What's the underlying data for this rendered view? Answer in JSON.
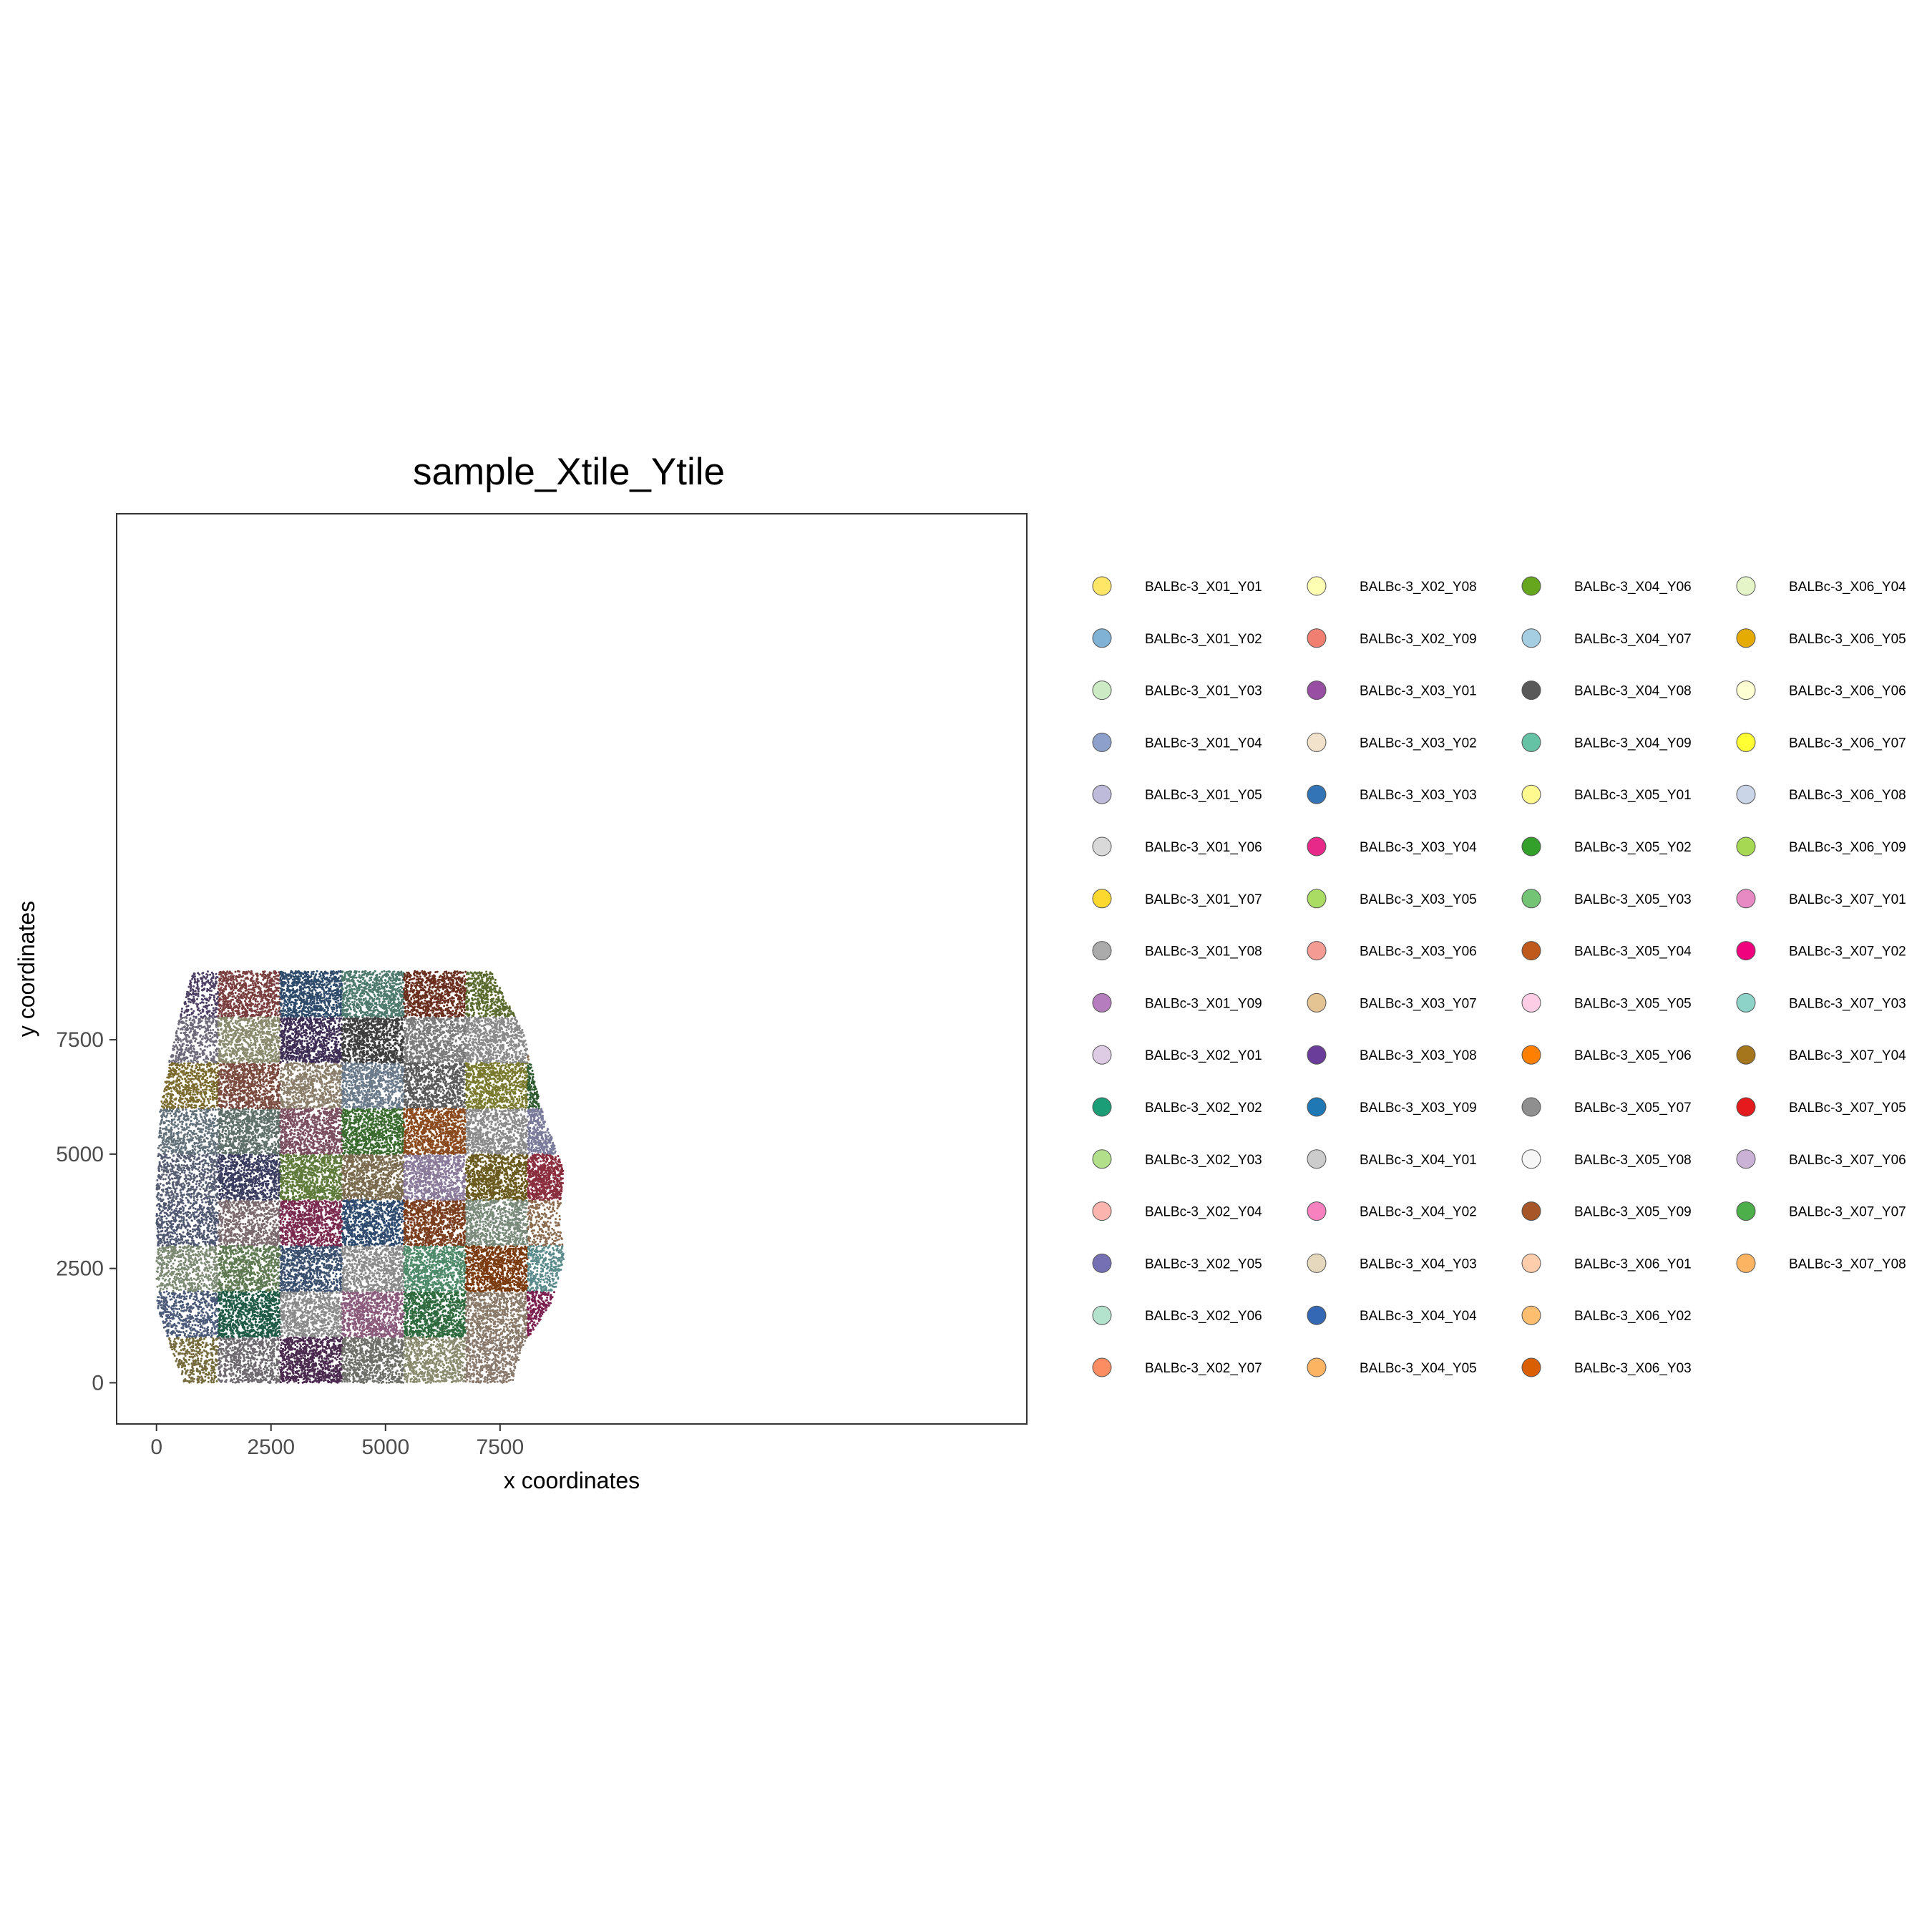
{
  "chart_data": {
    "type": "scatter",
    "title": "sample_Xtile_Ytile",
    "xlabel": "x coordinates",
    "ylabel": "y coordinates",
    "xlim": [
      -870,
      19000
    ],
    "ylim": [
      -900,
      19000
    ],
    "x_ticks": [
      0,
      2500,
      5000,
      7500
    ],
    "y_ticks": [
      0,
      2500,
      5000,
      7500
    ],
    "x_tick_labels": [
      "0",
      "2500",
      "5000",
      "7500"
    ],
    "y_tick_labels": [
      "0",
      "2500",
      "5000",
      "7500"
    ],
    "grid": false,
    "legend_placement": "right",
    "tile_size": [
      1350,
      1000
    ],
    "legend": [
      {
        "name": "BALBc-3_X01_Y01",
        "color": "#ffe666"
      },
      {
        "name": "BALBc-3_X01_Y02",
        "color": "#7fb2d5"
      },
      {
        "name": "BALBc-3_X01_Y03",
        "color": "#ccebc5"
      },
      {
        "name": "BALBc-3_X01_Y04",
        "color": "#8da0cb"
      },
      {
        "name": "BALBc-3_X01_Y05",
        "color": "#bebada"
      },
      {
        "name": "BALBc-3_X01_Y06",
        "color": "#d9d9d9"
      },
      {
        "name": "BALBc-3_X01_Y07",
        "color": "#fdd92f"
      },
      {
        "name": "BALBc-3_X01_Y08",
        "color": "#ababab"
      },
      {
        "name": "BALBc-3_X01_Y09",
        "color": "#b57cbe"
      },
      {
        "name": "BALBc-3_X02_Y01",
        "color": "#decbe4"
      },
      {
        "name": "BALBc-3_X02_Y02",
        "color": "#1b9e77"
      },
      {
        "name": "BALBc-3_X02_Y03",
        "color": "#b2df8a"
      },
      {
        "name": "BALBc-3_X02_Y04",
        "color": "#fbb4ae"
      },
      {
        "name": "BALBc-3_X02_Y05",
        "color": "#7570b3"
      },
      {
        "name": "BALBc-3_X02_Y06",
        "color": "#b3e2cd"
      },
      {
        "name": "BALBc-3_X02_Y07",
        "color": "#fc8d62"
      },
      {
        "name": "BALBc-3_X02_Y08",
        "color": "#ffffb3"
      },
      {
        "name": "BALBc-3_X02_Y09",
        "color": "#f07f72"
      },
      {
        "name": "BALBc-3_X03_Y01",
        "color": "#984ea3"
      },
      {
        "name": "BALBc-3_X03_Y02",
        "color": "#f2e2cc"
      },
      {
        "name": "BALBc-3_X03_Y03",
        "color": "#3274b5"
      },
      {
        "name": "BALBc-3_X03_Y04",
        "color": "#e7298a"
      },
      {
        "name": "BALBc-3_X03_Y05",
        "color": "#aadc64"
      },
      {
        "name": "BALBc-3_X03_Y06",
        "color": "#f49b93"
      },
      {
        "name": "BALBc-3_X03_Y07",
        "color": "#e5c494"
      },
      {
        "name": "BALBc-3_X03_Y08",
        "color": "#6a3d9a"
      },
      {
        "name": "BALBc-3_X03_Y09",
        "color": "#1f78b4"
      },
      {
        "name": "BALBc-3_X04_Y01",
        "color": "#cccccc"
      },
      {
        "name": "BALBc-3_X04_Y02",
        "color": "#f781bf"
      },
      {
        "name": "BALBc-3_X04_Y03",
        "color": "#e5d8bd"
      },
      {
        "name": "BALBc-3_X04_Y04",
        "color": "#3468b4"
      },
      {
        "name": "BALBc-3_X04_Y05",
        "color": "#fdb462"
      },
      {
        "name": "BALBc-3_X04_Y06",
        "color": "#66a61e"
      },
      {
        "name": "BALBc-3_X04_Y07",
        "color": "#a6cee3"
      },
      {
        "name": "BALBc-3_X04_Y08",
        "color": "#595959"
      },
      {
        "name": "BALBc-3_X04_Y09",
        "color": "#66c2a5"
      },
      {
        "name": "BALBc-3_X05_Y01",
        "color": "#fff98f"
      },
      {
        "name": "BALBc-3_X05_Y02",
        "color": "#33a02c"
      },
      {
        "name": "BALBc-3_X05_Y03",
        "color": "#74c476"
      },
      {
        "name": "BALBc-3_X05_Y04",
        "color": "#c05a1c"
      },
      {
        "name": "BALBc-3_X05_Y05",
        "color": "#fccde5"
      },
      {
        "name": "BALBc-3_X05_Y06",
        "color": "#ff7f00"
      },
      {
        "name": "BALBc-3_X05_Y07",
        "color": "#8f8f8f"
      },
      {
        "name": "BALBc-3_X05_Y08",
        "color": "#f6f6f6"
      },
      {
        "name": "BALBc-3_X05_Y09",
        "color": "#a65628"
      },
      {
        "name": "BALBc-3_X06_Y01",
        "color": "#fdcdac"
      },
      {
        "name": "BALBc-3_X06_Y02",
        "color": "#fdbf6f"
      },
      {
        "name": "BALBc-3_X06_Y03",
        "color": "#d95f02"
      },
      {
        "name": "BALBc-3_X06_Y04",
        "color": "#e5f5c8"
      },
      {
        "name": "BALBc-3_X06_Y05",
        "color": "#e6ab02"
      },
      {
        "name": "BALBc-3_X06_Y06",
        "color": "#ffffd4"
      },
      {
        "name": "BALBc-3_X06_Y07",
        "color": "#ffff33"
      },
      {
        "name": "BALBc-3_X06_Y08",
        "color": "#cbd5e8"
      },
      {
        "name": "BALBc-3_X06_Y09",
        "color": "#a6d854"
      },
      {
        "name": "BALBc-3_X07_Y01",
        "color": "#e78ac3"
      },
      {
        "name": "BALBc-3_X07_Y02",
        "color": "#f0027f"
      },
      {
        "name": "BALBc-3_X07_Y03",
        "color": "#8dd3c7"
      },
      {
        "name": "BALBc-3_X07_Y04",
        "color": "#a6761d"
      },
      {
        "name": "BALBc-3_X07_Y05",
        "color": "#e41a1c"
      },
      {
        "name": "BALBc-3_X07_Y06",
        "color": "#cab2d6"
      },
      {
        "name": "BALBc-3_X07_Y07",
        "color": "#4daf4a"
      },
      {
        "name": "BALBc-3_X07_Y08",
        "color": "#fdb462"
      }
    ],
    "tiles": [
      {
        "x": [
          0,
          1350
        ],
        "y": [
          0,
          1000
        ],
        "color": "#756b3d",
        "density": 0.55
      },
      {
        "x": [
          0,
          1350
        ],
        "y": [
          1000,
          2000
        ],
        "color": "#4a5a78",
        "density": 0.6
      },
      {
        "x": [
          0,
          1350
        ],
        "y": [
          2000,
          3000
        ],
        "color": "#7c8a74",
        "density": 0.6
      },
      {
        "x": [
          0,
          1350
        ],
        "y": [
          3000,
          4000
        ],
        "color": "#4e5670",
        "density": 0.6
      },
      {
        "x": [
          0,
          1350
        ],
        "y": [
          4000,
          5000
        ],
        "color": "#575d72",
        "density": 0.6
      },
      {
        "x": [
          0,
          1350
        ],
        "y": [
          5000,
          6000
        ],
        "color": "#62707a",
        "density": 0.6
      },
      {
        "x": [
          0,
          1350
        ],
        "y": [
          6000,
          7000
        ],
        "color": "#7a6a2d",
        "density": 0.7
      },
      {
        "x": [
          0,
          1350
        ],
        "y": [
          7000,
          8000
        ],
        "color": "#6e6a7a",
        "density": 0.55
      },
      {
        "x": [
          0,
          1350
        ],
        "y": [
          8000,
          9000
        ],
        "color": "#4d3f63",
        "density": 0.55
      },
      {
        "x": [
          1350,
          2700
        ],
        "y": [
          0,
          1000
        ],
        "color": "#6f6a70",
        "density": 0.7
      },
      {
        "x": [
          1350,
          2700
        ],
        "y": [
          1000,
          2000
        ],
        "color": "#1f5a46",
        "density": 0.9
      },
      {
        "x": [
          1350,
          2700
        ],
        "y": [
          2000,
          3000
        ],
        "color": "#5f7a52",
        "density": 0.8
      },
      {
        "x": [
          1350,
          2700
        ],
        "y": [
          3000,
          4000
        ],
        "color": "#7a6a6e",
        "density": 0.7
      },
      {
        "x": [
          1350,
          2700
        ],
        "y": [
          4000,
          5000
        ],
        "color": "#3a3c5f",
        "density": 0.85
      },
      {
        "x": [
          1350,
          2700
        ],
        "y": [
          5000,
          6000
        ],
        "color": "#5f6f6a",
        "density": 0.85
      },
      {
        "x": [
          1350,
          2700
        ],
        "y": [
          6000,
          7000
        ],
        "color": "#7a4a3e",
        "density": 0.85
      },
      {
        "x": [
          1350,
          2700
        ],
        "y": [
          7000,
          8000
        ],
        "color": "#8a8a6e",
        "density": 0.8
      },
      {
        "x": [
          1350,
          2700
        ],
        "y": [
          8000,
          9000
        ],
        "color": "#7a3e3e",
        "density": 0.8
      },
      {
        "x": [
          2700,
          4050
        ],
        "y": [
          0,
          1000
        ],
        "color": "#4a2a4e",
        "density": 0.9
      },
      {
        "x": [
          2700,
          4050
        ],
        "y": [
          1000,
          2000
        ],
        "color": "#8a8a8a",
        "density": 0.75
      },
      {
        "x": [
          2700,
          4050
        ],
        "y": [
          2000,
          3000
        ],
        "color": "#3a4f6e",
        "density": 0.8
      },
      {
        "x": [
          2700,
          4050
        ],
        "y": [
          3000,
          4000
        ],
        "color": "#7a2a4e",
        "density": 0.85
      },
      {
        "x": [
          2700,
          4050
        ],
        "y": [
          4000,
          5000
        ],
        "color": "#5f7a3a",
        "density": 0.9
      },
      {
        "x": [
          2700,
          4050
        ],
        "y": [
          5000,
          6000
        ],
        "color": "#7a4e5e",
        "density": 0.85
      },
      {
        "x": [
          2700,
          4050
        ],
        "y": [
          6000,
          7000
        ],
        "color": "#8a7e6a",
        "density": 0.7
      },
      {
        "x": [
          2700,
          4050
        ],
        "y": [
          7000,
          8000
        ],
        "color": "#3e2e55",
        "density": 0.85
      },
      {
        "x": [
          2700,
          4050
        ],
        "y": [
          8000,
          9000
        ],
        "color": "#2e4a6a",
        "density": 0.9
      },
      {
        "x": [
          4050,
          5400
        ],
        "y": [
          0,
          1000
        ],
        "color": "#6f6f6a",
        "density": 0.8
      },
      {
        "x": [
          4050,
          5400
        ],
        "y": [
          1000,
          2000
        ],
        "color": "#8a5a7a",
        "density": 0.85
      },
      {
        "x": [
          4050,
          5400
        ],
        "y": [
          2000,
          3000
        ],
        "color": "#8a8a8a",
        "density": 0.75
      },
      {
        "x": [
          4050,
          5400
        ],
        "y": [
          3000,
          4000
        ],
        "color": "#2e4a6e",
        "density": 0.85
      },
      {
        "x": [
          4050,
          5400
        ],
        "y": [
          4000,
          5000
        ],
        "color": "#7a6a4e",
        "density": 0.9
      },
      {
        "x": [
          4050,
          5400
        ],
        "y": [
          5000,
          6000
        ],
        "color": "#3a6a2e",
        "density": 0.9
      },
      {
        "x": [
          4050,
          5400
        ],
        "y": [
          6000,
          7000
        ],
        "color": "#6a7a8a",
        "density": 0.8
      },
      {
        "x": [
          4050,
          5400
        ],
        "y": [
          7000,
          8000
        ],
        "color": "#3e3e3e",
        "density": 0.9
      },
      {
        "x": [
          4050,
          5400
        ],
        "y": [
          8000,
          9000
        ],
        "color": "#4e7a6e",
        "density": 0.85
      },
      {
        "x": [
          5400,
          6750
        ],
        "y": [
          0,
          1000
        ],
        "color": "#8a8a6e",
        "density": 0.75
      },
      {
        "x": [
          5400,
          6750
        ],
        "y": [
          1000,
          2000
        ],
        "color": "#2e6a3e",
        "density": 0.9
      },
      {
        "x": [
          5400,
          6750
        ],
        "y": [
          2000,
          3000
        ],
        "color": "#4e8a6a",
        "density": 0.85
      },
      {
        "x": [
          5400,
          6750
        ],
        "y": [
          3000,
          4000
        ],
        "color": "#7a3e1e",
        "density": 0.9
      },
      {
        "x": [
          5400,
          6750
        ],
        "y": [
          4000,
          5000
        ],
        "color": "#8a7a9a",
        "density": 0.85
      },
      {
        "x": [
          5400,
          6750
        ],
        "y": [
          5000,
          6000
        ],
        "color": "#8a4a1e",
        "density": 0.95
      },
      {
        "x": [
          5400,
          6750
        ],
        "y": [
          6000,
          7000
        ],
        "color": "#5a5a5a",
        "density": 0.85
      },
      {
        "x": [
          5400,
          6750
        ],
        "y": [
          7000,
          8000
        ],
        "color": "#7a7a7a",
        "density": 0.8
      },
      {
        "x": [
          5400,
          6750
        ],
        "y": [
          8000,
          9000
        ],
        "color": "#6a2e1e",
        "density": 0.85
      },
      {
        "x": [
          6750,
          8100
        ],
        "y": [
          0,
          1000
        ],
        "color": "#8a7a6e",
        "density": 0.7
      },
      {
        "x": [
          6750,
          8100
        ],
        "y": [
          1000,
          2000
        ],
        "color": "#8a7a6a",
        "density": 0.75
      },
      {
        "x": [
          6750,
          8100
        ],
        "y": [
          2000,
          3000
        ],
        "color": "#7a3a0e",
        "density": 0.95
      },
      {
        "x": [
          6750,
          8100
        ],
        "y": [
          3000,
          4000
        ],
        "color": "#7a8a7a",
        "density": 0.8
      },
      {
        "x": [
          6750,
          8100
        ],
        "y": [
          4000,
          5000
        ],
        "color": "#6a5a1e",
        "density": 0.9
      },
      {
        "x": [
          6750,
          8100
        ],
        "y": [
          5000,
          6000
        ],
        "color": "#8a8a8a",
        "density": 0.75
      },
      {
        "x": [
          6750,
          8100
        ],
        "y": [
          6000,
          7000
        ],
        "color": "#7a7a2e",
        "density": 0.85
      },
      {
        "x": [
          6750,
          8100
        ],
        "y": [
          7000,
          8000
        ],
        "color": "#8a8a8a",
        "density": 0.75
      },
      {
        "x": [
          6750,
          8100
        ],
        "y": [
          8000,
          9000
        ],
        "color": "#5a6a2e",
        "density": 0.7
      },
      {
        "x": [
          8100,
          9000
        ],
        "y": [
          1000,
          2000
        ],
        "color": "#7a1e4e",
        "density": 0.6
      },
      {
        "x": [
          8100,
          9000
        ],
        "y": [
          2000,
          3000
        ],
        "color": "#5a8a8a",
        "density": 0.45
      },
      {
        "x": [
          8100,
          9000
        ],
        "y": [
          3000,
          4000
        ],
        "color": "#8a6a4e",
        "density": 0.3
      },
      {
        "x": [
          8100,
          9000
        ],
        "y": [
          4000,
          5000
        ],
        "color": "#8a2e3e",
        "density": 0.75
      },
      {
        "x": [
          8100,
          9000
        ],
        "y": [
          5000,
          6000
        ],
        "color": "#7a7a9a",
        "density": 0.6
      },
      {
        "x": [
          8100,
          9000
        ],
        "y": [
          6000,
          7000
        ],
        "color": "#2e5a2e",
        "density": 0.6
      },
      {
        "x": [
          8100,
          9000
        ],
        "y": [
          7000,
          8000
        ],
        "color": "#8a6a4e",
        "density": 0.4
      }
    ],
    "outline": {
      "left": [
        [
          600,
          0
        ],
        [
          330,
          700
        ],
        [
          0,
          1700
        ],
        [
          0,
          4200
        ],
        [
          80,
          6000
        ],
        [
          270,
          7000
        ],
        [
          500,
          8000
        ],
        [
          800,
          9000
        ]
      ],
      "right": [
        [
          7800,
          0
        ],
        [
          8000,
          800
        ],
        [
          8600,
          1700
        ],
        [
          8900,
          2700
        ],
        [
          8800,
          3700
        ],
        [
          8900,
          4600
        ],
        [
          8400,
          6000
        ],
        [
          8000,
          7700
        ],
        [
          7300,
          9000
        ]
      ]
    }
  }
}
